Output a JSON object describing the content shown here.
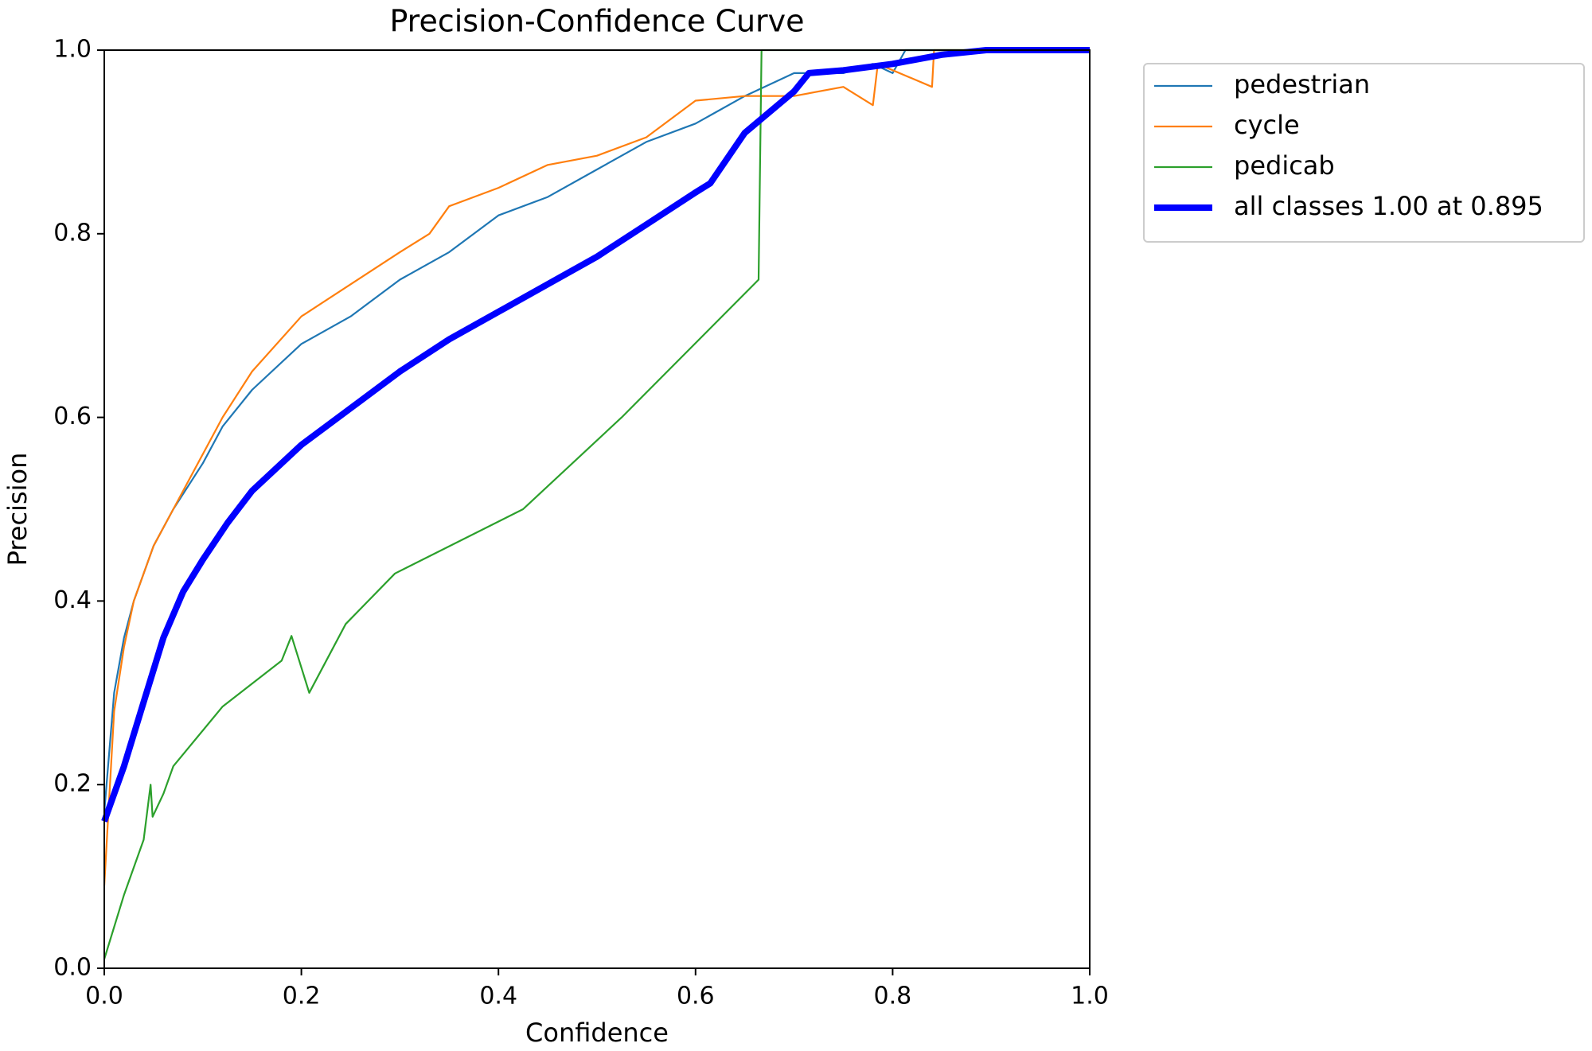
{
  "chart_data": {
    "type": "line",
    "title": "Precision-Confidence Curve",
    "x_label": "Confidence",
    "y_label": "Precision",
    "xlim": [
      0,
      1
    ],
    "ylim": [
      0,
      1
    ],
    "xticks": [
      {
        "value": 0,
        "label": "0.0"
      },
      {
        "value": 0.2,
        "label": "0.2"
      },
      {
        "value": 0.4,
        "label": "0.4"
      },
      {
        "value": 0.6,
        "label": "0.6"
      },
      {
        "value": 0.8,
        "label": "0.8"
      },
      {
        "value": 1,
        "label": "1.0"
      }
    ],
    "yticks": [
      {
        "value": 0,
        "label": "0.0"
      },
      {
        "value": 0.2,
        "label": "0.2"
      },
      {
        "value": 0.4,
        "label": "0.4"
      },
      {
        "value": 0.6,
        "label": "0.6"
      },
      {
        "value": 0.8,
        "label": "0.8"
      },
      {
        "value": 1,
        "label": "1.0"
      }
    ],
    "legend": "upper-right-outside",
    "series": [
      {
        "name": "pedestrian",
        "color": "#1f77b4",
        "width": "thin",
        "x": [
          0,
          0.01,
          0.02,
          0.03,
          0.05,
          0.07,
          0.1,
          0.12,
          0.15,
          0.2,
          0.25,
          0.3,
          0.35,
          0.4,
          0.45,
          0.5,
          0.55,
          0.6,
          0.65,
          0.7,
          0.75,
          0.78,
          0.8,
          0.813,
          0.9,
          1
        ],
        "values": [
          0.17,
          0.3,
          0.36,
          0.4,
          0.46,
          0.5,
          0.55,
          0.59,
          0.63,
          0.68,
          0.71,
          0.75,
          0.78,
          0.82,
          0.84,
          0.87,
          0.9,
          0.92,
          0.95,
          0.975,
          0.975,
          0.985,
          0.975,
          1,
          1,
          1
        ]
      },
      {
        "name": "cycle",
        "color": "#ff7f0e",
        "width": "thin",
        "x": [
          0,
          0.01,
          0.02,
          0.03,
          0.05,
          0.07,
          0.1,
          0.12,
          0.15,
          0.2,
          0.25,
          0.3,
          0.33,
          0.35,
          0.4,
          0.45,
          0.5,
          0.55,
          0.6,
          0.65,
          0.7,
          0.75,
          0.78,
          0.785,
          0.84,
          0.842,
          1
        ],
        "values": [
          0.09,
          0.28,
          0.35,
          0.4,
          0.46,
          0.5,
          0.56,
          0.6,
          0.65,
          0.71,
          0.745,
          0.78,
          0.8,
          0.83,
          0.85,
          0.875,
          0.885,
          0.905,
          0.945,
          0.95,
          0.95,
          0.96,
          0.94,
          0.985,
          0.96,
          1,
          1
        ]
      },
      {
        "name": "pedicab",
        "color": "#2ca02c",
        "width": "thin",
        "x": [
          0,
          0.02,
          0.04,
          0.047,
          0.049,
          0.06,
          0.07,
          0.12,
          0.18,
          0.19,
          0.208,
          0.245,
          0.295,
          0.425,
          0.525,
          0.664,
          0.667,
          1
        ],
        "values": [
          0.01,
          0.08,
          0.14,
          0.2,
          0.165,
          0.19,
          0.22,
          0.285,
          0.335,
          0.362,
          0.3,
          0.375,
          0.43,
          0.5,
          0.6,
          0.75,
          1,
          1
        ]
      },
      {
        "name": "all classes 1.00 at 0.895",
        "color": "#0000ff",
        "width": "thick",
        "x": [
          0,
          0.02,
          0.04,
          0.06,
          0.08,
          0.1,
          0.125,
          0.15,
          0.2,
          0.25,
          0.3,
          0.35,
          0.4,
          0.45,
          0.5,
          0.55,
          0.6,
          0.615,
          0.65,
          0.7,
          0.715,
          0.75,
          0.8,
          0.85,
          0.895,
          1
        ],
        "values": [
          0.16,
          0.22,
          0.29,
          0.36,
          0.41,
          0.445,
          0.485,
          0.52,
          0.57,
          0.61,
          0.65,
          0.685,
          0.715,
          0.745,
          0.775,
          0.81,
          0.845,
          0.855,
          0.91,
          0.955,
          0.975,
          0.978,
          0.985,
          0.995,
          1,
          1
        ]
      }
    ]
  }
}
